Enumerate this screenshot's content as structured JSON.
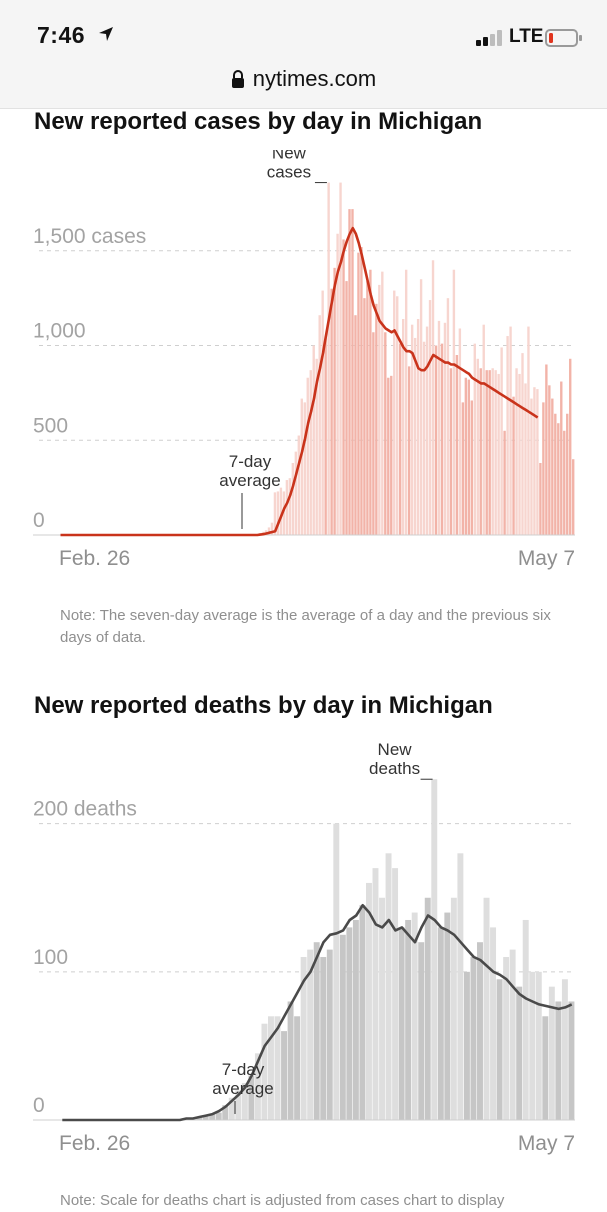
{
  "status_bar": {
    "time": "7:46",
    "network": "LTE",
    "url": "nytimes.com",
    "icons": [
      "location-arrow-icon",
      "signal-icon",
      "battery-icon",
      "lock-icon"
    ],
    "battery_color": "#e1341e"
  },
  "cases": {
    "title": "New reported cases by day in Michigan",
    "note": "Note: The seven-day average is the average of a day and the previous six days of data.",
    "bar_color": "#f2b3a8",
    "bar_light_color": "#f7d5cf",
    "line_color": "#c9331b"
  },
  "deaths": {
    "title": "New reported deaths by day in Michigan",
    "note": "Note: Scale for deaths chart is adjusted from cases chart to display",
    "bar_color": "#c6c6c6",
    "bar_light_color": "#dedede",
    "line_color": "#4a4a4a"
  },
  "chart_data": [
    {
      "type": "bar",
      "title": "New reported cases by day in Michigan",
      "x_start_label": "Feb. 26",
      "x_end_label": "May 7",
      "y_ticks": [
        {
          "value": 0,
          "label": "0"
        },
        {
          "value": 500,
          "label": "500"
        },
        {
          "value": 1000,
          "label": "1,000"
        },
        {
          "value": 1500,
          "label": "1,500 cases"
        }
      ],
      "ylim": [
        0,
        1900
      ],
      "annotations": {
        "bars": "New cases",
        "line": "7-day average"
      },
      "series": [
        {
          "name": "New cases",
          "values": [
            0,
            0,
            0,
            0,
            0,
            0,
            0,
            0,
            0,
            0,
            0,
            0,
            0,
            0,
            0,
            0,
            0,
            0,
            0,
            0,
            0,
            0,
            0,
            0,
            0,
            0,
            0,
            0,
            0,
            0,
            0,
            0,
            0,
            0,
            0,
            0,
            0,
            0,
            0,
            0,
            0,
            0,
            0,
            0,
            0,
            0,
            0,
            0,
            0,
            0,
            0,
            0,
            0,
            0,
            0,
            0,
            0,
            0,
            0,
            0,
            0,
            0,
            0,
            0,
            0,
            2,
            5,
            10,
            17,
            25,
            40,
            65,
            225,
            230,
            250,
            230,
            290,
            300,
            380,
            440,
            525,
            720,
            700,
            830,
            870,
            1000,
            930,
            1160,
            1290,
            1050,
            1860,
            1300,
            1410,
            1590,
            1860,
            1560,
            1340,
            1720,
            1720,
            1160,
            1490,
            1520,
            1250,
            1340,
            1400,
            1070,
            1220,
            1320,
            1390,
            1070,
            830,
            840,
            1290,
            1260,
            1010,
            1140,
            1400,
            890,
            1110,
            1040,
            1140,
            1350,
            1020,
            1100,
            1240,
            1450,
            1000,
            1130,
            1010,
            1120,
            1250,
            880,
            1400,
            950,
            1090,
            700,
            830,
            820,
            710,
            1010,
            930,
            880,
            1110,
            870,
            870,
            880,
            870,
            850,
            990,
            550,
            1050,
            1100,
            730,
            880,
            850,
            960,
            800,
            1100,
            720,
            780,
            770,
            380,
            700,
            900,
            790,
            720,
            640,
            590,
            810,
            550,
            640,
            930,
            400
          ]
        },
        {
          "name": "7-day average",
          "values": [
            0,
            0,
            0,
            0,
            0,
            0,
            0,
            0,
            0,
            0,
            0,
            0,
            0,
            0,
            0,
            0,
            0,
            0,
            0,
            0,
            0,
            0,
            0,
            0,
            0,
            0,
            0,
            0,
            0,
            0,
            0,
            0,
            0,
            0,
            0,
            0,
            0,
            0,
            0,
            0,
            0,
            0,
            0,
            0,
            0,
            0,
            0,
            0,
            0,
            0,
            0,
            0,
            0,
            0,
            0,
            0,
            0,
            0,
            0,
            0,
            0,
            0,
            0,
            0,
            0,
            0,
            0,
            2,
            4,
            8,
            12,
            16,
            20,
            60,
            100,
            140,
            170,
            210,
            260,
            320,
            380,
            440,
            510,
            590,
            650,
            720,
            810,
            880,
            960,
            1050,
            1140,
            1230,
            1320,
            1390,
            1440,
            1500,
            1550,
            1590,
            1620,
            1590,
            1540,
            1480,
            1410,
            1340,
            1270,
            1210,
            1170,
            1130,
            1110,
            1090,
            1080,
            1070,
            1080,
            1050,
            1020,
            990,
            970,
            970,
            960,
            920,
            880,
            870,
            870,
            890,
            920,
            950,
            940,
            930,
            920,
            910,
            910,
            900,
            900,
            890,
            880,
            870,
            860,
            850,
            830,
            820,
            810,
            800,
            800,
            790,
            780,
            770,
            760,
            750,
            740,
            730,
            720,
            710,
            700,
            690,
            680,
            670,
            660,
            650,
            640,
            630,
            620
          ]
        }
      ]
    },
    {
      "type": "bar",
      "title": "New reported deaths by day in Michigan",
      "x_start_label": "Feb. 26",
      "x_end_label": "May 7",
      "y_ticks": [
        {
          "value": 0,
          "label": "0"
        },
        {
          "value": 100,
          "label": "100"
        },
        {
          "value": 200,
          "label": "200 deaths"
        }
      ],
      "ylim": [
        0,
        245
      ],
      "annotations": {
        "bars": "New deaths",
        "line": "7-day average"
      },
      "series": [
        {
          "name": "New deaths",
          "values": [
            0,
            0,
            0,
            0,
            0,
            0,
            0,
            0,
            0,
            0,
            0,
            0,
            0,
            0,
            0,
            0,
            0,
            0,
            0,
            0,
            1,
            2,
            3,
            4,
            5,
            10,
            15,
            20,
            25,
            30,
            45,
            65,
            70,
            70,
            60,
            80,
            70,
            110,
            115,
            120,
            110,
            115,
            200,
            125,
            130,
            135,
            145,
            160,
            170,
            150,
            180,
            170,
            130,
            135,
            140,
            120,
            150,
            230,
            130,
            140,
            150,
            180,
            100,
            110,
            120,
            150,
            130,
            95,
            110,
            115,
            90,
            135,
            100,
            100,
            70,
            90,
            80,
            95,
            80
          ]
        },
        {
          "name": "7-day average",
          "values": [
            0,
            0,
            0,
            0,
            0,
            0,
            0,
            0,
            0,
            0,
            0,
            0,
            0,
            0,
            0,
            0,
            0,
            0,
            0,
            1,
            1,
            2,
            3,
            4,
            6,
            9,
            13,
            17,
            22,
            30,
            40,
            50,
            56,
            62,
            70,
            78,
            86,
            94,
            100,
            110,
            120,
            125,
            126,
            128,
            135,
            138,
            145,
            140,
            132,
            130,
            135,
            128,
            130,
            125,
            120,
            130,
            138,
            135,
            130,
            128,
            125,
            120,
            115,
            110,
            108,
            104,
            100,
            98,
            95,
            90,
            85,
            82,
            80,
            78,
            77,
            76,
            75,
            76,
            78
          ]
        }
      ]
    }
  ]
}
